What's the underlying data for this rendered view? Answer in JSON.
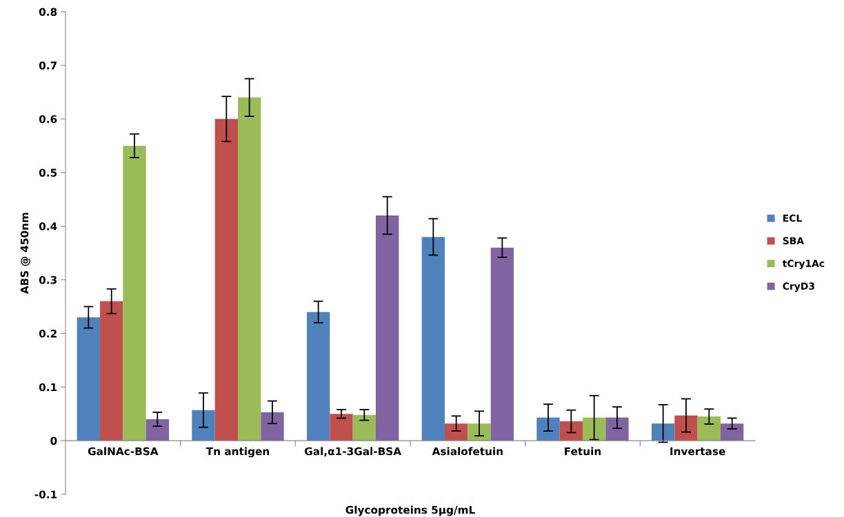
{
  "chart_data": {
    "type": "bar",
    "xlabel": "Glycoproteins 5µg/mL",
    "ylabel": "ABS @ 450nm",
    "categories": [
      "GalNAc-BSA",
      "Tn antigen",
      "Gal,α1-3Gal-BSA",
      "Asialofetuin",
      "Fetuin",
      "Invertase"
    ],
    "series": [
      {
        "name": "ECL",
        "color": "#4f81bd",
        "values": [
          0.23,
          0.057,
          0.24,
          0.38,
          0.043,
          0.032
        ],
        "errors": [
          0.02,
          0.032,
          0.02,
          0.034,
          0.025,
          0.035
        ]
      },
      {
        "name": "SBA",
        "color": "#c0504d",
        "values": [
          0.26,
          0.6,
          0.05,
          0.032,
          0.036,
          0.047
        ],
        "errors": [
          0.023,
          0.042,
          0.008,
          0.014,
          0.021,
          0.031
        ]
      },
      {
        "name": "tCry1Ac",
        "color": "#9bbb59",
        "values": [
          0.55,
          0.64,
          0.048,
          0.032,
          0.043,
          0.045
        ],
        "errors": [
          0.022,
          0.035,
          0.01,
          0.023,
          0.041,
          0.014
        ]
      },
      {
        "name": "CryD3",
        "color": "#8064a2",
        "values": [
          0.04,
          0.053,
          0.42,
          0.36,
          0.043,
          0.032
        ],
        "errors": [
          0.013,
          0.021,
          0.035,
          0.018,
          0.02,
          0.01
        ]
      }
    ],
    "ylim": [
      -0.1,
      0.8
    ],
    "yticks": [
      -0.1,
      0,
      0.1,
      0.2,
      0.3,
      0.4,
      0.5,
      0.6,
      0.7,
      0.8
    ],
    "grid": false,
    "legend": "right"
  }
}
